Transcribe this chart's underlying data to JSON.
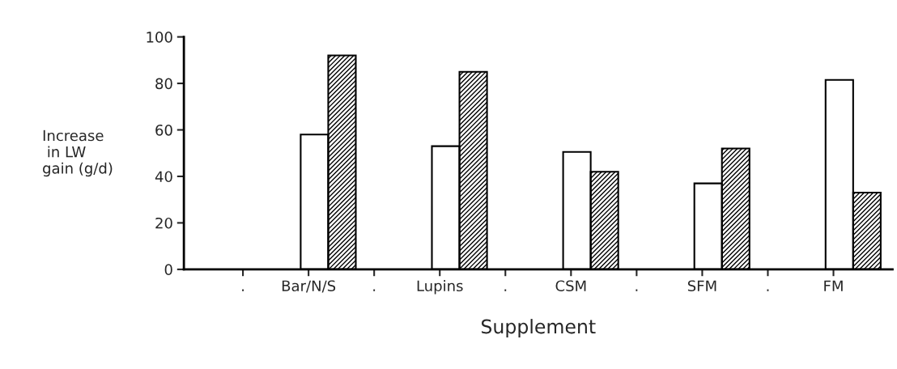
{
  "chart_data": {
    "type": "bar",
    "xlabel": "Supplement",
    "ylabel": "Increase\n in LW\ngain (g/d)",
    "categories": [
      ".",
      "Bar/N/S",
      ".",
      "Lupins",
      ".",
      "CSM",
      ".",
      "SFM",
      ".",
      "FM"
    ],
    "series": [
      {
        "color": "#ffffff",
        "values": [
          null,
          58,
          null,
          53,
          null,
          50.5,
          null,
          37,
          null,
          81.5
        ]
      },
      {
        "color": "#000000",
        "values": [
          null,
          92,
          null,
          85,
          null,
          42,
          null,
          52,
          null,
          33
        ]
      }
    ],
    "ylim": [
      0,
      100
    ],
    "yticks": [
      0,
      20,
      40,
      60,
      80,
      100
    ],
    "grid": false
  }
}
